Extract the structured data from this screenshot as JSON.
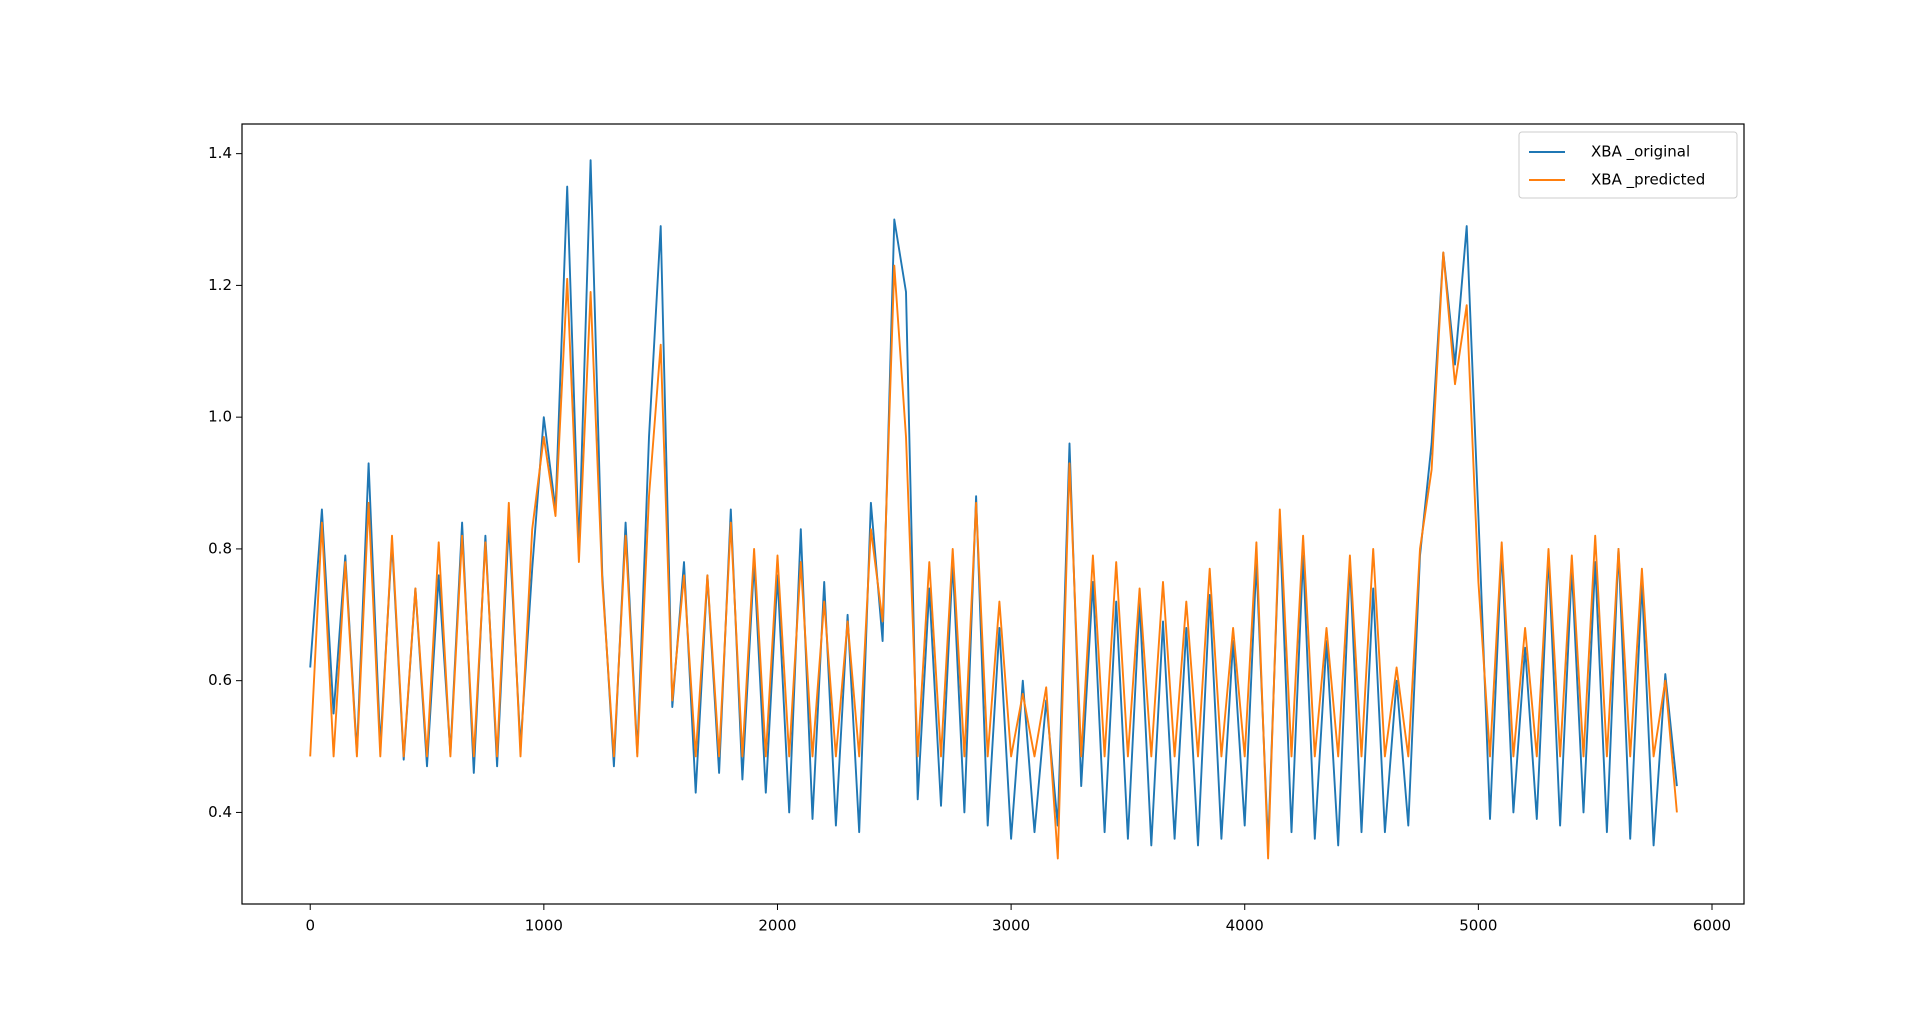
{
  "chart_data": {
    "type": "line",
    "x": [
      0,
      50,
      100,
      150,
      200,
      250,
      300,
      350,
      400,
      450,
      500,
      550,
      600,
      650,
      700,
      750,
      800,
      850,
      900,
      950,
      1000,
      1050,
      1100,
      1150,
      1200,
      1250,
      1300,
      1350,
      1400,
      1450,
      1500,
      1550,
      1600,
      1650,
      1700,
      1750,
      1800,
      1850,
      1900,
      1950,
      2000,
      2050,
      2100,
      2150,
      2200,
      2250,
      2300,
      2350,
      2400,
      2450,
      2500,
      2550,
      2600,
      2650,
      2700,
      2750,
      2800,
      2850,
      2900,
      2950,
      3000,
      3050,
      3100,
      3150,
      3200,
      3250,
      3300,
      3350,
      3400,
      3450,
      3500,
      3550,
      3600,
      3650,
      3700,
      3750,
      3800,
      3850,
      3900,
      3950,
      4000,
      4050,
      4100,
      4150,
      4200,
      4250,
      4300,
      4350,
      4400,
      4450,
      4500,
      4550,
      4600,
      4650,
      4700,
      4750,
      4800,
      4850,
      4900,
      4950,
      5000,
      5050,
      5100,
      5150,
      5200,
      5250,
      5300,
      5350,
      5400,
      5450,
      5500,
      5550,
      5600,
      5650,
      5700,
      5750,
      5800,
      5850
    ],
    "series": [
      {
        "name": "XBA _original",
        "color": "#1f77b4",
        "values": [
          0.62,
          0.86,
          0.55,
          0.79,
          0.49,
          0.93,
          0.5,
          0.81,
          0.48,
          0.74,
          0.47,
          0.76,
          0.49,
          0.84,
          0.46,
          0.82,
          0.47,
          0.84,
          0.5,
          0.77,
          1.0,
          0.86,
          1.35,
          0.8,
          1.39,
          0.76,
          0.47,
          0.84,
          0.49,
          0.97,
          1.29,
          0.56,
          0.78,
          0.43,
          0.76,
          0.46,
          0.86,
          0.45,
          0.78,
          0.43,
          0.76,
          0.4,
          0.83,
          0.39,
          0.75,
          0.38,
          0.7,
          0.37,
          0.87,
          0.66,
          1.3,
          1.19,
          0.42,
          0.74,
          0.41,
          0.78,
          0.4,
          0.88,
          0.38,
          0.68,
          0.36,
          0.6,
          0.37,
          0.57,
          0.38,
          0.96,
          0.44,
          0.75,
          0.37,
          0.72,
          0.36,
          0.72,
          0.35,
          0.69,
          0.36,
          0.68,
          0.35,
          0.73,
          0.36,
          0.66,
          0.38,
          0.78,
          0.35,
          0.84,
          0.37,
          0.79,
          0.36,
          0.66,
          0.35,
          0.78,
          0.37,
          0.74,
          0.37,
          0.6,
          0.38,
          0.79,
          0.96,
          1.25,
          1.08,
          1.29,
          0.85,
          0.39,
          0.8,
          0.4,
          0.65,
          0.39,
          0.79,
          0.38,
          0.77,
          0.4,
          0.78,
          0.37,
          0.8,
          0.36,
          0.75,
          0.35,
          0.61,
          0.44
        ]
      },
      {
        "name": "XBA _predicted",
        "color": "#ff7f0e",
        "values": [
          0.485,
          0.84,
          0.485,
          0.78,
          0.485,
          0.87,
          0.485,
          0.82,
          0.485,
          0.74,
          0.485,
          0.81,
          0.485,
          0.82,
          0.485,
          0.81,
          0.485,
          0.87,
          0.485,
          0.83,
          0.97,
          0.85,
          1.21,
          0.78,
          1.19,
          0.75,
          0.485,
          0.82,
          0.485,
          0.88,
          1.11,
          0.57,
          0.76,
          0.485,
          0.76,
          0.485,
          0.84,
          0.485,
          0.8,
          0.485,
          0.79,
          0.485,
          0.78,
          0.485,
          0.72,
          0.485,
          0.69,
          0.485,
          0.83,
          0.69,
          1.23,
          0.97,
          0.485,
          0.78,
          0.485,
          0.8,
          0.485,
          0.87,
          0.485,
          0.72,
          0.485,
          0.58,
          0.485,
          0.59,
          0.33,
          0.93,
          0.485,
          0.79,
          0.485,
          0.78,
          0.485,
          0.74,
          0.485,
          0.75,
          0.485,
          0.72,
          0.485,
          0.77,
          0.485,
          0.68,
          0.485,
          0.81,
          0.33,
          0.86,
          0.485,
          0.82,
          0.485,
          0.68,
          0.485,
          0.79,
          0.485,
          0.8,
          0.485,
          0.62,
          0.485,
          0.8,
          0.92,
          1.25,
          1.05,
          1.17,
          0.75,
          0.485,
          0.81,
          0.485,
          0.68,
          0.485,
          0.8,
          0.485,
          0.79,
          0.485,
          0.82,
          0.485,
          0.8,
          0.485,
          0.77,
          0.485,
          0.6,
          0.4
        ]
      }
    ],
    "xlim": [
      -292,
      6137
    ],
    "xticks": [
      0,
      1000,
      2000,
      3000,
      4000,
      5000,
      6000
    ],
    "ylim": [
      0.261,
      1.445
    ],
    "yticks": [
      0.4,
      0.6,
      0.8,
      {
        "value": 1,
        "label": "1.0"
      },
      1.2,
      1.4
    ],
    "legend": "upper right"
  }
}
